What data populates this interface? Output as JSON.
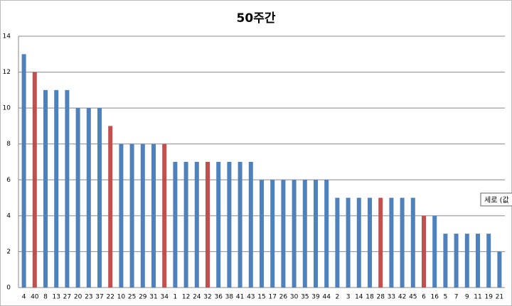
{
  "chart_data": {
    "type": "bar",
    "title": "50주간",
    "categories": [
      "4",
      "40",
      "8",
      "13",
      "27",
      "20",
      "23",
      "37",
      "22",
      "10",
      "25",
      "29",
      "31",
      "34",
      "1",
      "12",
      "24",
      "32",
      "36",
      "38",
      "41",
      "43",
      "15",
      "17",
      "26",
      "30",
      "35",
      "39",
      "44",
      "2",
      "3",
      "14",
      "18",
      "28",
      "33",
      "42",
      "45",
      "6",
      "16",
      "5",
      "7",
      "9",
      "11",
      "19",
      "21"
    ],
    "values": [
      13,
      12,
      11,
      11,
      11,
      10,
      10,
      10,
      9,
      8,
      8,
      8,
      8,
      8,
      7,
      7,
      7,
      7,
      7,
      7,
      7,
      7,
      6,
      6,
      6,
      6,
      6,
      6,
      6,
      5,
      5,
      5,
      5,
      5,
      5,
      5,
      5,
      4,
      4,
      3,
      3,
      3,
      3,
      3,
      2
    ],
    "colors": [
      "#4f81bd",
      "#c0504d",
      "#4f81bd",
      "#4f81bd",
      "#4f81bd",
      "#4f81bd",
      "#4f81bd",
      "#4f81bd",
      "#c0504d",
      "#4f81bd",
      "#4f81bd",
      "#4f81bd",
      "#4f81bd",
      "#c0504d",
      "#4f81bd",
      "#4f81bd",
      "#4f81bd",
      "#c0504d",
      "#4f81bd",
      "#4f81bd",
      "#4f81bd",
      "#4f81bd",
      "#4f81bd",
      "#4f81bd",
      "#4f81bd",
      "#4f81bd",
      "#4f81bd",
      "#4f81bd",
      "#4f81bd",
      "#4f81bd",
      "#4f81bd",
      "#4f81bd",
      "#4f81bd",
      "#c0504d",
      "#4f81bd",
      "#4f81bd",
      "#4f81bd",
      "#c0504d",
      "#4f81bd",
      "#4f81bd",
      "#4f81bd",
      "#4f81bd",
      "#4f81bd",
      "#4f81bd",
      "#4f81bd"
    ],
    "ylim": [
      0,
      14
    ],
    "yticks": [
      0,
      2,
      4,
      6,
      8,
      10,
      12,
      14
    ],
    "grid": true,
    "annotation": "세로 (값"
  }
}
